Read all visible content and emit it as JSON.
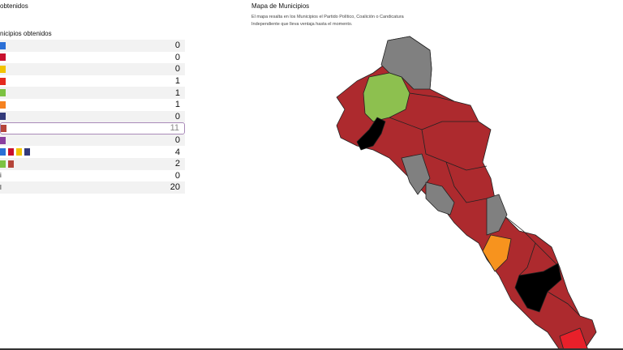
{
  "section_title": "obtenidos",
  "table_title": "nicipios obtenidos",
  "rows": [
    {
      "logos": [
        "#2a6fd6"
      ],
      "value": "0"
    },
    {
      "logos": [
        "#c8102e"
      ],
      "value": "0"
    },
    {
      "logos": [
        "#f2c300"
      ],
      "value": "0"
    },
    {
      "logos": [
        "#e52a1e"
      ],
      "value": "1"
    },
    {
      "logos": [
        "#7cc242"
      ],
      "value": "1"
    },
    {
      "logos": [
        "#f58220"
      ],
      "value": "1"
    },
    {
      "logos": [
        "#333a7a"
      ],
      "value": "0"
    },
    {
      "logos": [
        "#b5453a"
      ],
      "value": "11"
    },
    {
      "logos": [
        "#8b3fa0"
      ],
      "value": "0"
    },
    {
      "logos": [
        "#2a6fd6",
        "#c8102e",
        "#f2c300",
        "#333a7a"
      ],
      "value": "4"
    },
    {
      "logos": [
        "#7cc242",
        "#b5453a"
      ],
      "value": "2"
    },
    {
      "label": "i",
      "logos": [],
      "value": "0"
    },
    {
      "label": "l",
      "logos": [],
      "value": "20"
    }
  ],
  "map": {
    "title": "Mapa de Municipios",
    "description": "El mapa resalta en los Municipios el Partido Político, Coalición o Candicatura Independiente que lleva ventaja hasta el momento.",
    "colors": {
      "base": "#ad2a2e",
      "gray": "#808080",
      "green": "#8dc04f",
      "black": "#000000",
      "orange": "#f7931e",
      "red": "#e8202a"
    }
  }
}
